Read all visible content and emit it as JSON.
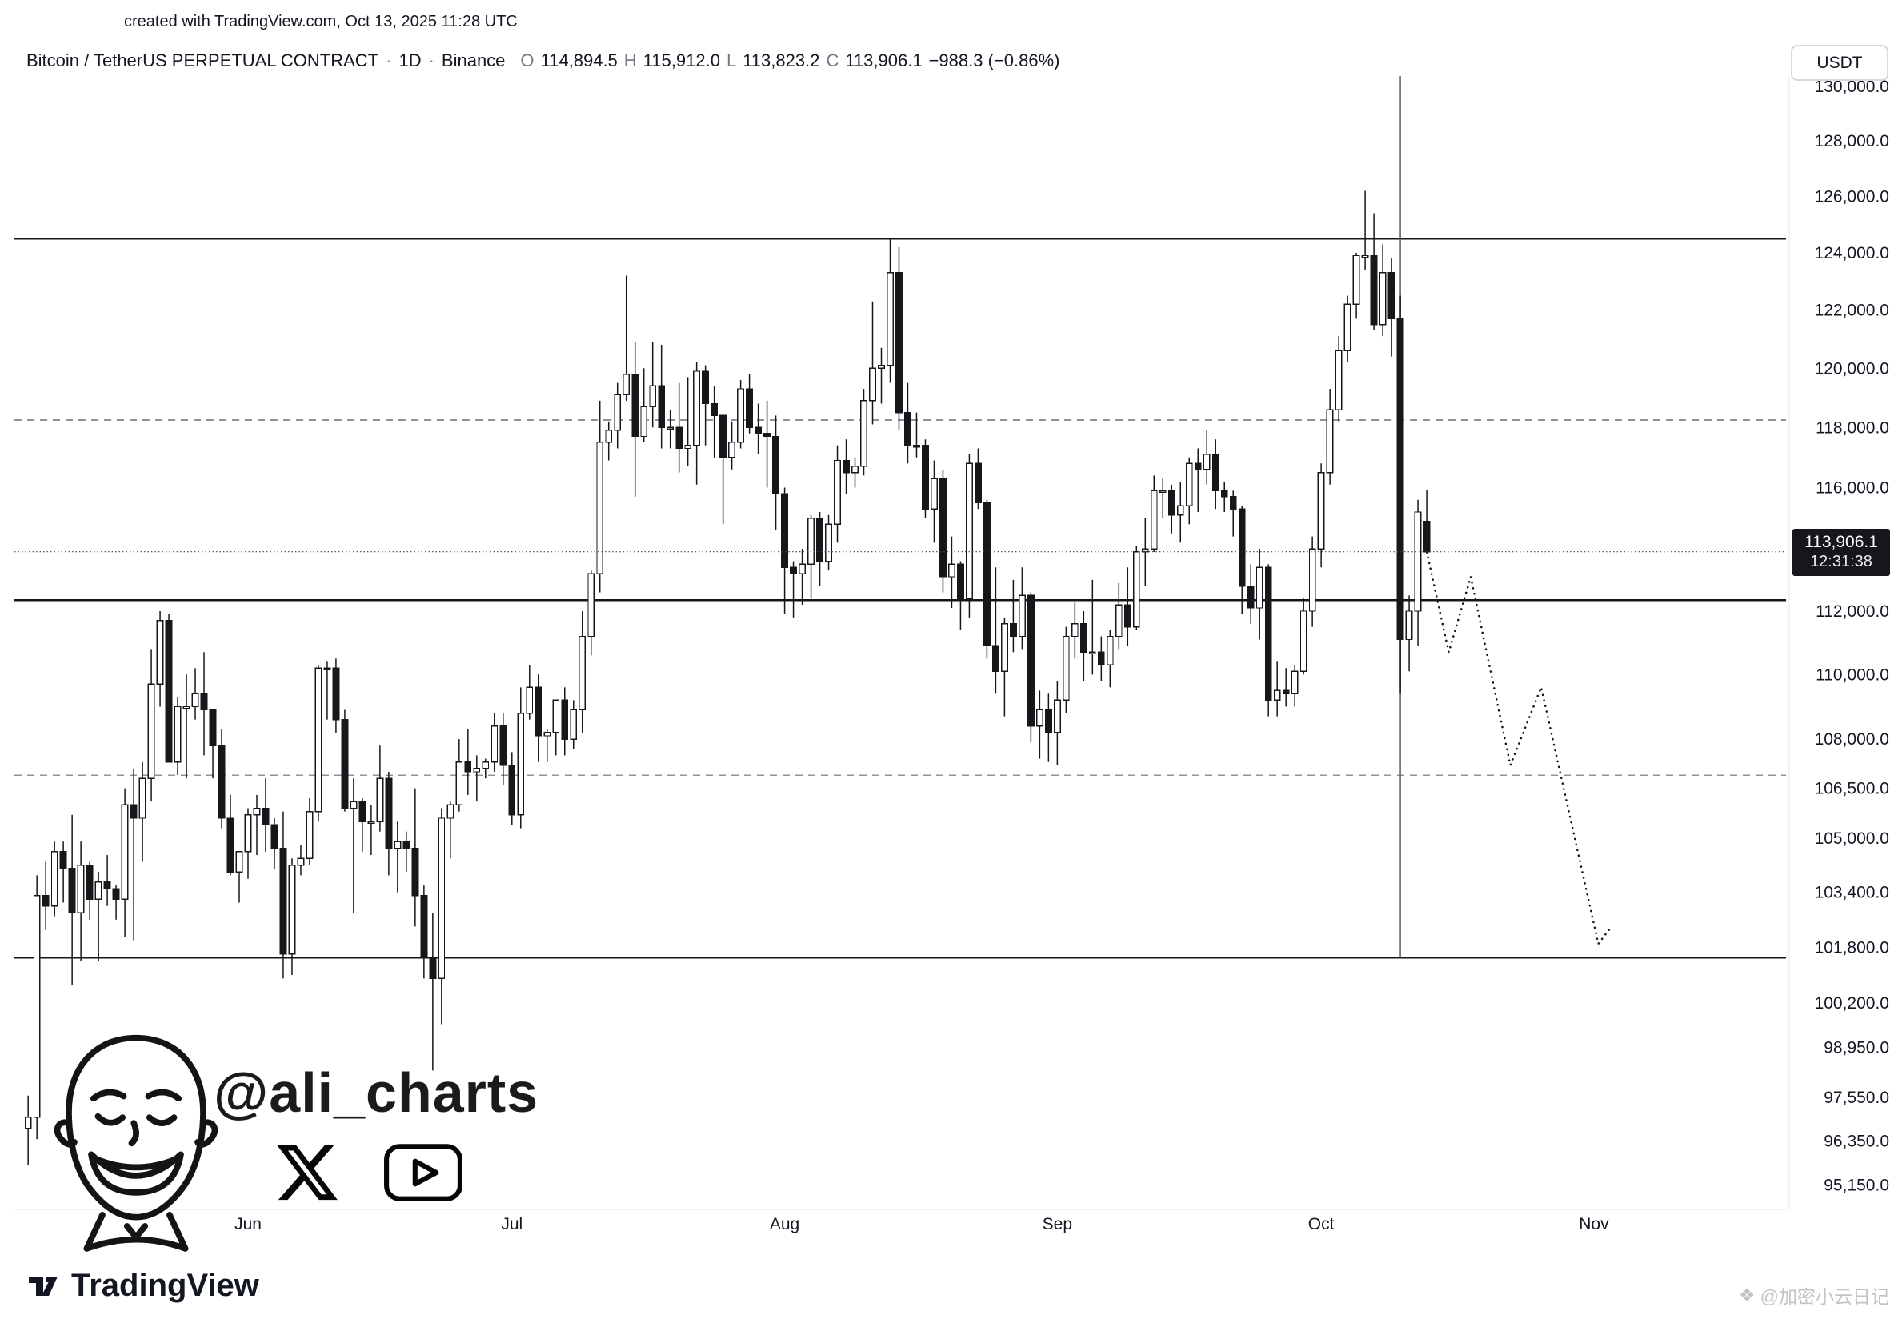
{
  "attribution": "created with TradingView.com, Oct 13, 2025 11:28 UTC",
  "toolbar": {
    "currency_label": "USDT"
  },
  "legend": {
    "title": "Bitcoin / TetherUS PERPETUAL CONTRACT",
    "sep1": "·",
    "interval": "1D",
    "sep2": "·",
    "exchange": "Binance",
    "o_label": "O",
    "o_value": "114,894.5",
    "h_label": "H",
    "h_value": "115,912.0",
    "l_label": "L",
    "l_value": "113,823.2",
    "c_label": "C",
    "c_value": "113,906.1",
    "change_value": "−988.3 (−0.86%)"
  },
  "price_badge": {
    "price": "113,906.1",
    "countdown": "12:31:38"
  },
  "watermark": {
    "handle": "@ali_charts"
  },
  "footer": {
    "brand": "TradingView"
  },
  "corner_watermark": {
    "icon": "❖",
    "text": "@加密小云日记"
  },
  "chart_data": {
    "type": "candlestick",
    "title": "Bitcoin / TetherUS PERPETUAL CONTRACT · 1D · Binance",
    "scale": "log",
    "palette": {
      "line": "#15171a",
      "dashed": "#8f9399",
      "badge_bg": "#15171c",
      "up": "#ffffff",
      "down": "#15171a"
    },
    "price_axis": {
      "side": "right",
      "ticks": [
        130000,
        128000,
        126000,
        124000,
        122000,
        120000,
        118000,
        116000,
        112000,
        110000,
        108000,
        106500,
        105000,
        103400,
        101800,
        100200,
        98950,
        97550,
        96350,
        95150
      ]
    },
    "time_axis": {
      "months": [
        {
          "label": "Jun",
          "day": 25
        },
        {
          "label": "Jul",
          "day": 55
        },
        {
          "label": "Aug",
          "day": 86
        },
        {
          "label": "Sep",
          "day": 117
        },
        {
          "label": "Oct",
          "day": 147
        },
        {
          "label": "Nov",
          "day": 178
        }
      ]
    },
    "levels": [
      {
        "price": 124500,
        "style": "solid"
      },
      {
        "price": 118250,
        "style": "dashed"
      },
      {
        "price": 112350,
        "style": "solid"
      },
      {
        "price": 106900,
        "style": "dashed"
      },
      {
        "price": 101500,
        "style": "solid"
      }
    ],
    "current_price": 113906.1,
    "event_vline_day": 156,
    "candles": [
      [
        96700,
        97600,
        95700,
        97000
      ],
      [
        97000,
        103900,
        96400,
        103300
      ],
      [
        103300,
        104300,
        102300,
        103000
      ],
      [
        103000,
        104900,
        102700,
        104600
      ],
      [
        104600,
        104900,
        103100,
        104100
      ],
      [
        104100,
        105700,
        100700,
        102800
      ],
      [
        102800,
        104900,
        101400,
        104200
      ],
      [
        104200,
        104300,
        102600,
        103200
      ],
      [
        103200,
        104000,
        101400,
        103700
      ],
      [
        103700,
        104500,
        103000,
        103500
      ],
      [
        103500,
        103600,
        102600,
        103200
      ],
      [
        103200,
        106500,
        102100,
        106000
      ],
      [
        106000,
        107100,
        102000,
        105600
      ],
      [
        105600,
        107300,
        104300,
        106800
      ],
      [
        106800,
        110800,
        106100,
        109700
      ],
      [
        109700,
        112000,
        109000,
        111700
      ],
      [
        111700,
        111900,
        107300,
        107300
      ],
      [
        107300,
        109300,
        106900,
        109000
      ],
      [
        109000,
        110000,
        106800,
        109000
      ],
      [
        109000,
        110200,
        108600,
        109400
      ],
      [
        109400,
        110700,
        107500,
        108900
      ],
      [
        108900,
        108900,
        106800,
        107800
      ],
      [
        107800,
        108300,
        105300,
        105600
      ],
      [
        105600,
        106300,
        103900,
        104000
      ],
      [
        104000,
        104600,
        103100,
        104600
      ],
      [
        104600,
        105900,
        103800,
        105700
      ],
      [
        105700,
        106300,
        104500,
        105900
      ],
      [
        105900,
        106800,
        104600,
        105400
      ],
      [
        105400,
        105600,
        104100,
        104700
      ],
      [
        104700,
        105800,
        100900,
        101600
      ],
      [
        101600,
        104400,
        101000,
        104200
      ],
      [
        104200,
        104800,
        103900,
        104400
      ],
      [
        104400,
        106200,
        104200,
        105800
      ],
      [
        105800,
        110300,
        105500,
        110200
      ],
      [
        110200,
        110400,
        108600,
        110200
      ],
      [
        110200,
        110500,
        108200,
        108600
      ],
      [
        108600,
        108900,
        105800,
        105900
      ],
      [
        105900,
        106800,
        102800,
        106100
      ],
      [
        106100,
        106200,
        104600,
        105500
      ],
      [
        105500,
        106000,
        104500,
        105500
      ],
      [
        105500,
        107800,
        105200,
        106800
      ],
      [
        106800,
        107000,
        103900,
        104700
      ],
      [
        104700,
        105500,
        103400,
        104900
      ],
      [
        104900,
        105200,
        104000,
        104700
      ],
      [
        104700,
        106500,
        102400,
        103300
      ],
      [
        103300,
        103600,
        100900,
        101500
      ],
      [
        101500,
        102800,
        98300,
        100900
      ],
      [
        100900,
        105900,
        99600,
        105600
      ],
      [
        105600,
        106100,
        104400,
        106000
      ],
      [
        106000,
        108000,
        105800,
        107300
      ],
      [
        107300,
        108300,
        106300,
        107000
      ],
      [
        107000,
        107500,
        106100,
        107100
      ],
      [
        107100,
        107400,
        106800,
        107300
      ],
      [
        107300,
        108800,
        107000,
        108400
      ],
      [
        108400,
        108800,
        106600,
        107200
      ],
      [
        107200,
        107600,
        105400,
        105700
      ],
      [
        105700,
        109600,
        105300,
        108800
      ],
      [
        108800,
        110300,
        108600,
        109600
      ],
      [
        109600,
        110000,
        107300,
        108100
      ],
      [
        108100,
        108300,
        107300,
        108200
      ],
      [
        108200,
        109200,
        107500,
        109200
      ],
      [
        109200,
        109600,
        107500,
        108000
      ],
      [
        108000,
        109200,
        107700,
        108900
      ],
      [
        108900,
        112000,
        108200,
        111200
      ],
      [
        111200,
        113300,
        110600,
        113200
      ],
      [
        113200,
        118900,
        112600,
        117500
      ],
      [
        117500,
        118200,
        116900,
        117900
      ],
      [
        117900,
        119500,
        117300,
        119100
      ],
      [
        119100,
        123200,
        118900,
        119800
      ],
      [
        119800,
        120900,
        115700,
        117700
      ],
      [
        117700,
        120000,
        117500,
        118700
      ],
      [
        118700,
        120900,
        118000,
        119400
      ],
      [
        119400,
        120800,
        117300,
        118000
      ],
      [
        118000,
        118600,
        117300,
        118000
      ],
      [
        118000,
        119500,
        116500,
        117300
      ],
      [
        117300,
        119700,
        116700,
        117400
      ],
      [
        117400,
        120200,
        116100,
        119900
      ],
      [
        119900,
        120100,
        117400,
        118800
      ],
      [
        118800,
        119400,
        117000,
        118400
      ],
      [
        118400,
        118400,
        114800,
        117000
      ],
      [
        117000,
        118200,
        116600,
        117500
      ],
      [
        117500,
        119600,
        117300,
        119300
      ],
      [
        119300,
        119800,
        117800,
        118000
      ],
      [
        118000,
        118800,
        117100,
        117800
      ],
      [
        117800,
        118900,
        116000,
        117700
      ],
      [
        117700,
        118400,
        114600,
        115800
      ],
      [
        115800,
        116000,
        111900,
        113400
      ],
      [
        113400,
        113600,
        111800,
        113200
      ],
      [
        113200,
        114000,
        112200,
        113500
      ],
      [
        113500,
        115100,
        112400,
        115000
      ],
      [
        115000,
        115200,
        112800,
        113600
      ],
      [
        113600,
        115100,
        113300,
        114800
      ],
      [
        114800,
        117400,
        114200,
        116900
      ],
      [
        116900,
        117600,
        115800,
        116500
      ],
      [
        116500,
        117000,
        116000,
        116700
      ],
      [
        116700,
        119300,
        116400,
        118900
      ],
      [
        118900,
        122300,
        118100,
        120000
      ],
      [
        120000,
        120700,
        118800,
        120100
      ],
      [
        120100,
        124500,
        119500,
        123300
      ],
      [
        123300,
        124200,
        117900,
        118500
      ],
      [
        118500,
        119500,
        116800,
        117400
      ],
      [
        117400,
        118500,
        117000,
        117400
      ],
      [
        117400,
        117600,
        115000,
        115300
      ],
      [
        115300,
        116900,
        114200,
        116300
      ],
      [
        116300,
        116600,
        112600,
        113100
      ],
      [
        113100,
        114400,
        112100,
        113500
      ],
      [
        113500,
        113600,
        111400,
        112400
      ],
      [
        112400,
        117100,
        111800,
        116800
      ],
      [
        116800,
        117300,
        115300,
        115500
      ],
      [
        115500,
        115600,
        110500,
        110900
      ],
      [
        110900,
        113400,
        109400,
        110100
      ],
      [
        110100,
        111800,
        108700,
        111600
      ],
      [
        111600,
        113000,
        110700,
        111200
      ],
      [
        111200,
        113400,
        110800,
        112500
      ],
      [
        112500,
        112600,
        107900,
        108400
      ],
      [
        108400,
        109500,
        107400,
        108900
      ],
      [
        108900,
        109400,
        107300,
        108200
      ],
      [
        108200,
        109800,
        107200,
        109200
      ],
      [
        109200,
        111500,
        108800,
        111200
      ],
      [
        111200,
        112300,
        110500,
        111600
      ],
      [
        111600,
        112000,
        109800,
        110700
      ],
      [
        110700,
        113000,
        110000,
        110700
      ],
      [
        110700,
        111200,
        109800,
        110300
      ],
      [
        110300,
        111400,
        109600,
        111200
      ],
      [
        111200,
        112900,
        110800,
        112200
      ],
      [
        112200,
        113400,
        110900,
        111500
      ],
      [
        111500,
        114100,
        111400,
        113900
      ],
      [
        113900,
        115000,
        112800,
        114000
      ],
      [
        114000,
        116400,
        113900,
        115900
      ],
      [
        115900,
        116300,
        115000,
        115900
      ],
      [
        115900,
        116100,
        114500,
        115100
      ],
      [
        115100,
        116200,
        114200,
        115400
      ],
      [
        115400,
        117000,
        114800,
        116800
      ],
      [
        116800,
        117300,
        115200,
        116600
      ],
      [
        116600,
        117900,
        116100,
        117100
      ],
      [
        117100,
        117600,
        115300,
        115900
      ],
      [
        115900,
        116200,
        115200,
        115700
      ],
      [
        115700,
        115900,
        114400,
        115300
      ],
      [
        115300,
        115400,
        111900,
        112800
      ],
      [
        112800,
        113500,
        111600,
        112100
      ],
      [
        112100,
        114000,
        111100,
        113400
      ],
      [
        113400,
        113500,
        108700,
        109200
      ],
      [
        109200,
        110400,
        108700,
        109500
      ],
      [
        109500,
        110200,
        109000,
        109400
      ],
      [
        109400,
        110300,
        109000,
        110100
      ],
      [
        110100,
        112400,
        110000,
        112000
      ],
      [
        112000,
        114400,
        111500,
        114000
      ],
      [
        114000,
        116800,
        113400,
        116500
      ],
      [
        116500,
        119300,
        116100,
        118600
      ],
      [
        118600,
        121100,
        118200,
        120600
      ],
      [
        120600,
        122500,
        120200,
        122200
      ],
      [
        122200,
        124000,
        121700,
        123900
      ],
      [
        123900,
        126200,
        123400,
        123900
      ],
      [
        123900,
        125400,
        121300,
        121500
      ],
      [
        121500,
        124300,
        121100,
        123300
      ],
      [
        123300,
        123800,
        120400,
        121700
      ],
      [
        121700,
        122500,
        109400,
        111100
      ],
      [
        111100,
        112500,
        110100,
        112000
      ],
      [
        112000,
        115600,
        110900,
        115200
      ],
      [
        114894.5,
        115912,
        113823.2,
        113906.1
      ]
    ],
    "projection_path": [
      [
        159,
        113900
      ],
      [
        161.5,
        110700
      ],
      [
        164,
        113100
      ],
      [
        168.5,
        107200
      ],
      [
        172,
        109600
      ],
      [
        178.5,
        101900
      ],
      [
        180,
        102400
      ]
    ]
  }
}
